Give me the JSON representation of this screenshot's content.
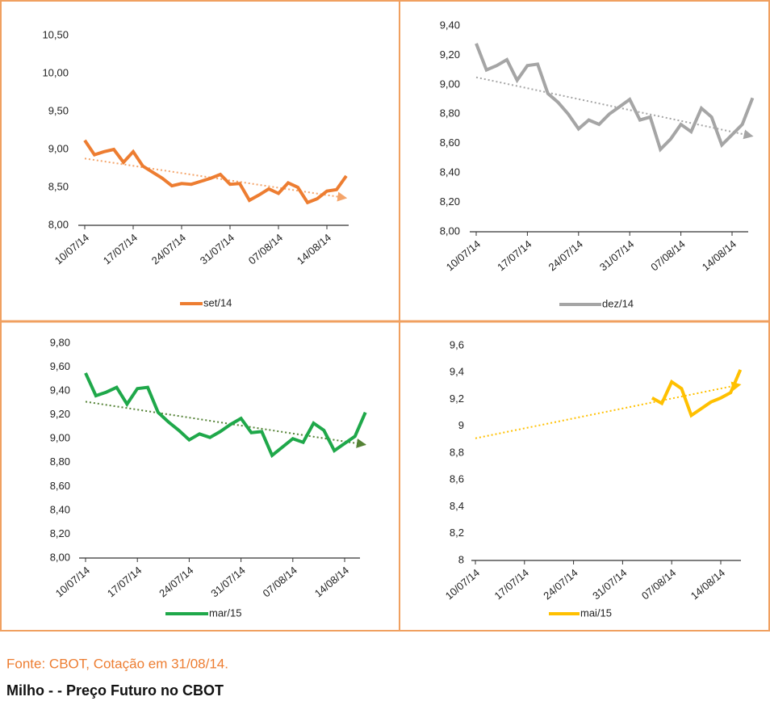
{
  "chart_data": [
    {
      "type": "line",
      "categories": [
        "10/07/14",
        null,
        null,
        null,
        null,
        "17/07/14",
        null,
        null,
        null,
        null,
        "24/07/14",
        null,
        null,
        null,
        null,
        "31/07/14",
        null,
        null,
        null,
        null,
        "07/08/14",
        null,
        null,
        null,
        null,
        "14/08/14",
        null,
        null
      ],
      "series": [
        {
          "name": "set/14",
          "color": "#ed7d31",
          "values": [
            9.12,
            8.93,
            8.97,
            9.0,
            8.83,
            8.97,
            8.78,
            8.7,
            8.62,
            8.52,
            8.55,
            8.54,
            8.58,
            8.62,
            8.67,
            8.54,
            8.55,
            8.33,
            8.4,
            8.48,
            8.42,
            8.56,
            8.5,
            8.3,
            8.35,
            8.45,
            8.47,
            8.65
          ]
        }
      ],
      "trend": [
        8.88,
        8.36
      ],
      "trend_color": "#f4a46a",
      "ylim": [
        8.0,
        10.5
      ],
      "yticks": [
        {
          "value": 8.0,
          "label": "8,00"
        },
        {
          "value": 8.5,
          "label": "8,50"
        },
        {
          "value": 9.0,
          "label": "9,00"
        },
        {
          "value": 9.5,
          "label": "9,50"
        },
        {
          "value": 10.0,
          "label": "10,00"
        },
        {
          "value": 10.5,
          "label": "10,50"
        }
      ]
    },
    {
      "type": "line",
      "categories": [
        "10/07/14",
        null,
        null,
        null,
        null,
        "17/07/14",
        null,
        null,
        null,
        null,
        "24/07/14",
        null,
        null,
        null,
        null,
        "31/07/14",
        null,
        null,
        null,
        null,
        "07/08/14",
        null,
        null,
        null,
        null,
        "14/08/14",
        null,
        null
      ],
      "series": [
        {
          "name": "dez/14",
          "color": "#a5a5a5",
          "values": [
            9.28,
            9.1,
            9.13,
            9.17,
            9.03,
            9.13,
            9.14,
            8.94,
            8.88,
            8.8,
            8.7,
            8.76,
            8.73,
            8.8,
            8.85,
            8.9,
            8.76,
            8.78,
            8.56,
            8.63,
            8.73,
            8.68,
            8.84,
            8.78,
            8.59,
            8.66,
            8.73,
            8.91
          ]
        }
      ],
      "trend": [
        9.05,
        8.65
      ],
      "trend_color": "#a5a5a5",
      "ylim": [
        8.0,
        9.4
      ],
      "yticks": [
        {
          "value": 8.0,
          "label": "8,00"
        },
        {
          "value": 8.2,
          "label": "8,20"
        },
        {
          "value": 8.4,
          "label": "8,40"
        },
        {
          "value": 8.6,
          "label": "8,60"
        },
        {
          "value": 8.8,
          "label": "8,80"
        },
        {
          "value": 9.0,
          "label": "9,00"
        },
        {
          "value": 9.2,
          "label": "9,20"
        },
        {
          "value": 9.4,
          "label": "9,40"
        }
      ]
    },
    {
      "type": "line",
      "categories": [
        "10/07/14",
        null,
        null,
        null,
        null,
        "17/07/14",
        null,
        null,
        null,
        null,
        "24/07/14",
        null,
        null,
        null,
        null,
        "31/07/14",
        null,
        null,
        null,
        null,
        "07/08/14",
        null,
        null,
        null,
        null,
        "14/08/14",
        null,
        null
      ],
      "series": [
        {
          "name": "mar/15",
          "color": "#1fa84a",
          "values": [
            9.55,
            9.36,
            9.39,
            9.43,
            9.29,
            9.42,
            9.43,
            9.22,
            9.14,
            9.07,
            8.99,
            9.04,
            9.01,
            9.06,
            9.12,
            9.17,
            9.05,
            9.06,
            8.86,
            8.93,
            9.0,
            8.97,
            9.13,
            9.07,
            8.9,
            8.96,
            9.02,
            9.22
          ]
        }
      ],
      "trend": [
        9.31,
        8.95
      ],
      "trend_color": "#548235",
      "ylim": [
        8.0,
        9.8
      ],
      "yticks": [
        {
          "value": 8.0,
          "label": "8,00"
        },
        {
          "value": 8.2,
          "label": "8,20"
        },
        {
          "value": 8.4,
          "label": "8,40"
        },
        {
          "value": 8.6,
          "label": "8,60"
        },
        {
          "value": 8.8,
          "label": "8,80"
        },
        {
          "value": 9.0,
          "label": "9,00"
        },
        {
          "value": 9.2,
          "label": "9,20"
        },
        {
          "value": 9.4,
          "label": "9,40"
        },
        {
          "value": 9.6,
          "label": "9,60"
        },
        {
          "value": 9.8,
          "label": "9,80"
        }
      ]
    },
    {
      "type": "line",
      "categories": [
        "10/07/14",
        null,
        null,
        null,
        null,
        "17/07/14",
        null,
        null,
        null,
        null,
        "24/07/14",
        null,
        null,
        null,
        null,
        "31/07/14",
        null,
        null,
        null,
        null,
        "07/08/14",
        null,
        null,
        null,
        null,
        "14/08/14",
        null,
        null
      ],
      "series": [
        {
          "name": "mai/15",
          "color": "#ffc000",
          "values": [
            null,
            null,
            null,
            null,
            null,
            null,
            null,
            null,
            null,
            null,
            null,
            null,
            null,
            null,
            null,
            null,
            null,
            null,
            9.21,
            9.17,
            9.33,
            9.28,
            9.08,
            9.13,
            9.18,
            9.21,
            9.25,
            9.42
          ]
        }
      ],
      "trend": [
        8.91,
        9.31
      ],
      "trend_color": "#ffc000",
      "ylim": [
        8,
        9.6
      ],
      "yticks": [
        8,
        {
          "value": 8.2,
          "label": "8,2"
        },
        {
          "value": 8.4,
          "label": "8,4"
        },
        {
          "value": 8.6,
          "label": "8,6"
        },
        {
          "value": 8.8,
          "label": "8,8"
        },
        9,
        {
          "value": 9.2,
          "label": "9,2"
        },
        {
          "value": 9.4,
          "label": "9,4"
        },
        {
          "value": 9.6,
          "label": "9,6"
        }
      ]
    }
  ],
  "source": "Fonte: CBOT, Cotação em 31/08/14.",
  "title": "Milho -  - Preço Futuro no CBOT"
}
